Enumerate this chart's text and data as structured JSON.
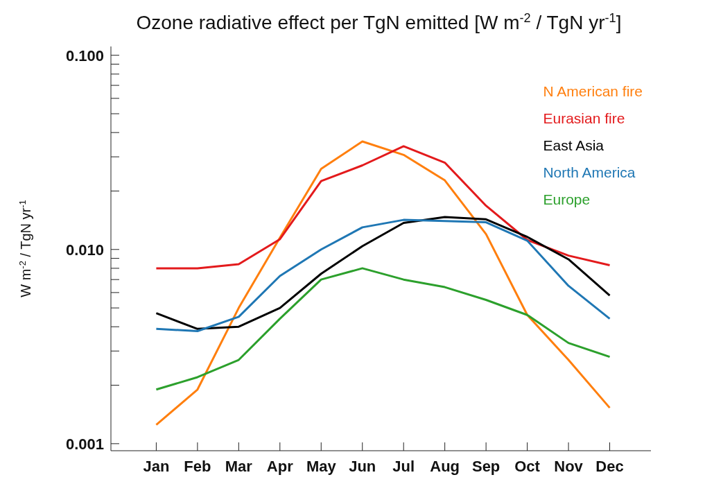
{
  "chart_data": {
    "type": "line",
    "title": "Ozone radiative effect per TgN emitted [W m$^{-2}$ / TgN yr$^{-1}$]",
    "ylabel": "W m$^{-2}$ / TgN yr$^{-1}$",
    "categories": [
      "Jan",
      "Feb",
      "Mar",
      "Apr",
      "May",
      "Jun",
      "Jul",
      "Aug",
      "Sep",
      "Oct",
      "Nov",
      "Dec"
    ],
    "series": [
      {
        "name": "N American fire",
        "color": "#ff7f0e",
        "values": [
          0.00125,
          0.0019,
          0.005,
          0.0115,
          0.026,
          0.036,
          0.0307,
          0.0227,
          0.012,
          0.0046,
          0.0027,
          0.00153
        ]
      },
      {
        "name": "Eurasian fire",
        "color": "#e31a1c",
        "values": [
          0.008,
          0.008,
          0.0084,
          0.0113,
          0.0225,
          0.0271,
          0.034,
          0.028,
          0.0168,
          0.0112,
          0.0093,
          0.0083
        ]
      },
      {
        "name": "East Asia",
        "color": "#000000",
        "values": [
          0.0047,
          0.0039,
          0.004,
          0.005,
          0.0075,
          0.0104,
          0.0137,
          0.0147,
          0.0143,
          0.0116,
          0.0089,
          0.0058
        ]
      },
      {
        "name": "North America",
        "color": "#1f77b4",
        "values": [
          0.0039,
          0.0038,
          0.0045,
          0.0073,
          0.01,
          0.013,
          0.0142,
          0.014,
          0.0138,
          0.0111,
          0.0065,
          0.0044
        ]
      },
      {
        "name": "Europe",
        "color": "#2ca02c",
        "values": [
          0.0019,
          0.0022,
          0.0027,
          0.0044,
          0.007,
          0.008,
          0.007,
          0.0064,
          0.0055,
          0.0046,
          0.0033,
          0.0028
        ]
      }
    ],
    "log": "y",
    "ylim": [
      0.00092,
      0.111
    ],
    "yticks": [
      {
        "value": 0.001,
        "label": "0.001"
      },
      {
        "value": 0.002,
        "label": null
      },
      {
        "value": 0.003,
        "label": null
      },
      {
        "value": 0.004,
        "label": null
      },
      {
        "value": 0.005,
        "label": null
      },
      {
        "value": 0.006,
        "label": null
      },
      {
        "value": 0.007,
        "label": null
      },
      {
        "value": 0.008,
        "label": null
      },
      {
        "value": 0.009,
        "label": null
      },
      {
        "value": 0.01,
        "label": "0.010"
      },
      {
        "value": 0.02,
        "label": null
      },
      {
        "value": 0.03,
        "label": null
      },
      {
        "value": 0.04,
        "label": null
      },
      {
        "value": 0.05,
        "label": null
      },
      {
        "value": 0.06,
        "label": null
      },
      {
        "value": 0.07,
        "label": null
      },
      {
        "value": 0.08,
        "label": null
      },
      {
        "value": 0.09,
        "label": null
      },
      {
        "value": 0.1,
        "label": "0.100"
      }
    ],
    "grid": false,
    "legend": "top right",
    "marker": "none",
    "line_style": "solid"
  }
}
